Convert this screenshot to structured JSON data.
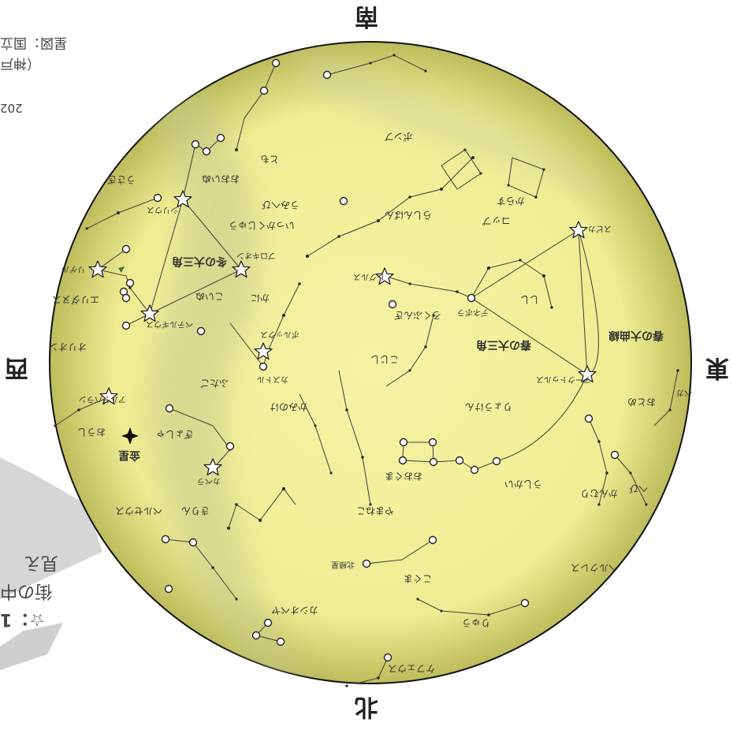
{
  "directions": {
    "top": "南",
    "bottom": "北",
    "left": "西",
    "right": "東"
  },
  "credits": {
    "line1": "星図：国立",
    "line2": "（神戸",
    "year": "202"
  },
  "legend": {
    "line1": "☆：1",
    "line2": "街の中",
    "line3": "見え"
  },
  "asterisms": {
    "spring_triangle": "春の大三角",
    "winter_triangle": "冬の大三角",
    "spring_curve": "春の大曲線"
  },
  "stars": {
    "polaris": "北極星",
    "sirius": "シリウス",
    "procyon": "プロキオン",
    "betelgeuse": "ベテルギウス",
    "rigel": "リゲル",
    "capella": "カペラ",
    "regulus": "レグルス",
    "spica": "スピカ",
    "arcturus": "アークトゥルス",
    "denebola": "デネボラ",
    "castor": "カストル",
    "pollux": "ポルックス",
    "aldebaran": "アルデバラン",
    "vega": "ベガ"
  },
  "constellations": {
    "crater": "コップ",
    "hydra": "うみへび",
    "corvus": "からす",
    "leo": "しし",
    "cancer": "かに",
    "gemini": "ふたご",
    "orion": "オリオン",
    "taurus": "おうし",
    "canis_major": "おおいぬ",
    "canis_minor": "こいぬ",
    "monoceros": "いっかくじゅう",
    "lepus": "うさぎ",
    "eridanus": "エリダヌス",
    "pyxis": "らしんばん",
    "antlia": "ポンプ",
    "puppis": "とも",
    "auriga": "ぎょしゃ",
    "perseus": "ペルセウス",
    "cassiopeia": "カシオペヤ",
    "cepheus": "ケフェウス",
    "ursa_major": "おおぐま",
    "ursa_minor": "こぐま",
    "draco": "りゅう",
    "hercules": "ヘルクレス",
    "corona_borealis": "かんむり",
    "bootes": "うしかい",
    "virgo": "おとめ",
    "canes_venatici": "りょうけん",
    "coma_berenices": "かみのけ",
    "lynx": "やまねこ",
    "camelopardalis": "きりん",
    "leo_minor": "こじし",
    "serpens": "へび",
    "sextans": "ろくぶんぎ"
  },
  "planets": {
    "venus": "金星"
  },
  "colors": {
    "sky_fill": "#f2f09a",
    "sky_edge": "#bcbb58",
    "milky_way": "#c9cf8f",
    "lines": "#3d3d3d",
    "star_dot": "#2a2a2a"
  }
}
